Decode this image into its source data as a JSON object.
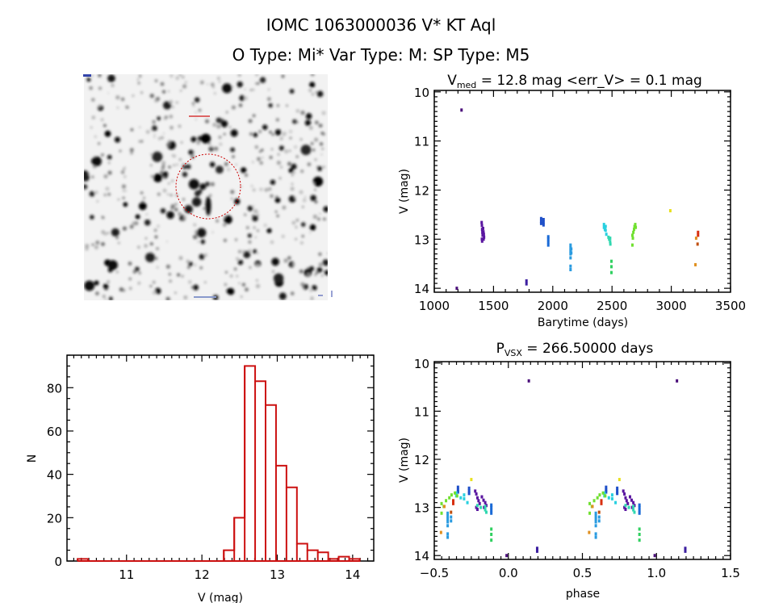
{
  "header": {
    "title": "IOMC 1063000036   V* KT Aql",
    "subtitle": "O Type: Mi*  Var Type: M:  SP Type: M5"
  },
  "colors": {
    "hist": "#cc1111",
    "frame": "#000000",
    "circle": "#cc0000"
  },
  "chart_data": [
    {
      "type": "scatter",
      "name": "light-curve",
      "title": {
        "main": "V",
        "sub": "med",
        "rest": " = 12.8 mag <err_V> = 0.1 mag"
      },
      "xlabel": "Barytime (days)",
      "ylabel": "V (mag)",
      "xlim": [
        1000,
        3500
      ],
      "ylim": [
        14.08,
        9.97
      ],
      "xticks": [
        1000,
        1500,
        2000,
        2500,
        3000,
        3500
      ],
      "yticks": [
        10,
        11,
        12,
        13,
        14
      ],
      "clusters": [
        {
          "color": "#4b0f7a",
          "points": [
            [
              1230,
              10.37
            ]
          ]
        },
        {
          "color": "#4b0f7a",
          "points": [
            [
              1190,
              14.0
            ]
          ]
        },
        {
          "color": "#5a16a0",
          "points": [
            [
              1400,
              12.66
            ],
            [
              1402,
              12.72
            ],
            [
              1404,
              12.8
            ],
            [
              1406,
              12.86
            ],
            [
              1408,
              12.92
            ],
            [
              1402,
              13.0
            ],
            [
              1404,
              13.04
            ],
            [
              1412,
              12.78
            ],
            [
              1415,
              12.85
            ],
            [
              1418,
              12.9
            ],
            [
              1420,
              12.96
            ],
            [
              1416,
              13.0
            ]
          ]
        },
        {
          "color": "#3c1fa0",
          "points": [
            [
              1778,
              13.85
            ],
            [
              1778,
              13.91
            ]
          ]
        },
        {
          "color": "#1e4fc8",
          "points": [
            [
              1902,
              12.58
            ],
            [
              1902,
              12.64
            ],
            [
              1902,
              12.68
            ],
            [
              1922,
              12.6
            ],
            [
              1922,
              12.66
            ],
            [
              1922,
              12.71
            ]
          ]
        },
        {
          "color": "#1a6ad6",
          "points": [
            [
              1962,
              12.95
            ],
            [
              1962,
              13.0
            ],
            [
              1962,
              13.06
            ],
            [
              1962,
              13.12
            ]
          ]
        },
        {
          "color": "#2a9be0",
          "points": [
            [
              2150,
              13.12
            ],
            [
              2150,
              13.18
            ],
            [
              2150,
              13.24
            ],
            [
              2150,
              13.3
            ],
            [
              2150,
              13.38
            ],
            [
              2150,
              13.55
            ],
            [
              2150,
              13.62
            ],
            [
              2156,
              13.2
            ],
            [
              2156,
              13.28
            ]
          ]
        },
        {
          "color": "#28d0e0",
          "points": [
            [
              2432,
              12.7
            ],
            [
              2432,
              12.76
            ],
            [
              2440,
              12.8
            ],
            [
              2446,
              12.74
            ],
            [
              2446,
              12.82
            ],
            [
              2452,
              12.9
            ]
          ]
        },
        {
          "color": "#30d8b0",
          "points": [
            [
              2470,
              12.96
            ],
            [
              2476,
              13.0
            ],
            [
              2484,
              12.98
            ],
            [
              2484,
              13.05
            ],
            [
              2486,
              13.1
            ]
          ]
        },
        {
          "color": "#30d060",
          "points": [
            [
              2495,
              13.45
            ],
            [
              2495,
              13.56
            ],
            [
              2495,
              13.68
            ]
          ]
        },
        {
          "color": "#70e030",
          "points": [
            [
              2672,
              12.92
            ],
            [
              2676,
              12.98
            ],
            [
              2680,
              12.86
            ],
            [
              2686,
              12.8
            ],
            [
              2690,
              12.74
            ],
            [
              2696,
              12.7
            ],
            [
              2700,
              12.76
            ],
            [
              2672,
              13.12
            ]
          ]
        },
        {
          "color": "#e8e020",
          "points": [
            [
              2992,
              12.42
            ]
          ]
        },
        {
          "color": "#e09020",
          "points": [
            [
              3210,
              12.98
            ],
            [
              3204,
              13.52
            ]
          ]
        },
        {
          "color": "#d83010",
          "points": [
            [
              3226,
              12.86
            ],
            [
              3226,
              12.92
            ]
          ]
        },
        {
          "color": "#c05010",
          "points": [
            [
              3222,
              13.1
            ]
          ]
        }
      ]
    },
    {
      "type": "histogram",
      "name": "magnitude-histogram",
      "xlabel": "V (mag)",
      "ylabel": "N",
      "xlim": [
        10.21,
        14.28
      ],
      "ylim": [
        0,
        95
      ],
      "xticks": [
        11,
        12,
        13,
        14
      ],
      "yticks": [
        0,
        20,
        40,
        60,
        80
      ],
      "bin_start": 10.35,
      "bin_width": 0.1386,
      "counts": [
        1,
        0,
        0,
        0,
        0,
        0,
        0,
        0,
        0,
        0,
        0,
        0,
        0,
        0,
        5,
        20,
        90,
        83,
        72,
        44,
        34,
        8,
        5,
        4,
        1,
        2,
        1
      ]
    },
    {
      "type": "scatter",
      "name": "phase-curve",
      "title": {
        "main": "P",
        "sub": "VSX",
        "rest": " = 266.50000 days"
      },
      "xlabel": "phase",
      "ylabel": "V (mag)",
      "period": 266.5,
      "phase_offset": 0.477,
      "xlim": [
        -0.5,
        1.5
      ],
      "ylim": [
        14.08,
        9.97
      ],
      "xticks": [
        -0.5,
        0.0,
        0.5,
        1.0,
        1.5
      ],
      "xticklabels": [
        "−0.5",
        "0.0",
        "0.5",
        "1.0",
        "1.5"
      ],
      "yticks": [
        10,
        11,
        12,
        13,
        14
      ]
    }
  ]
}
